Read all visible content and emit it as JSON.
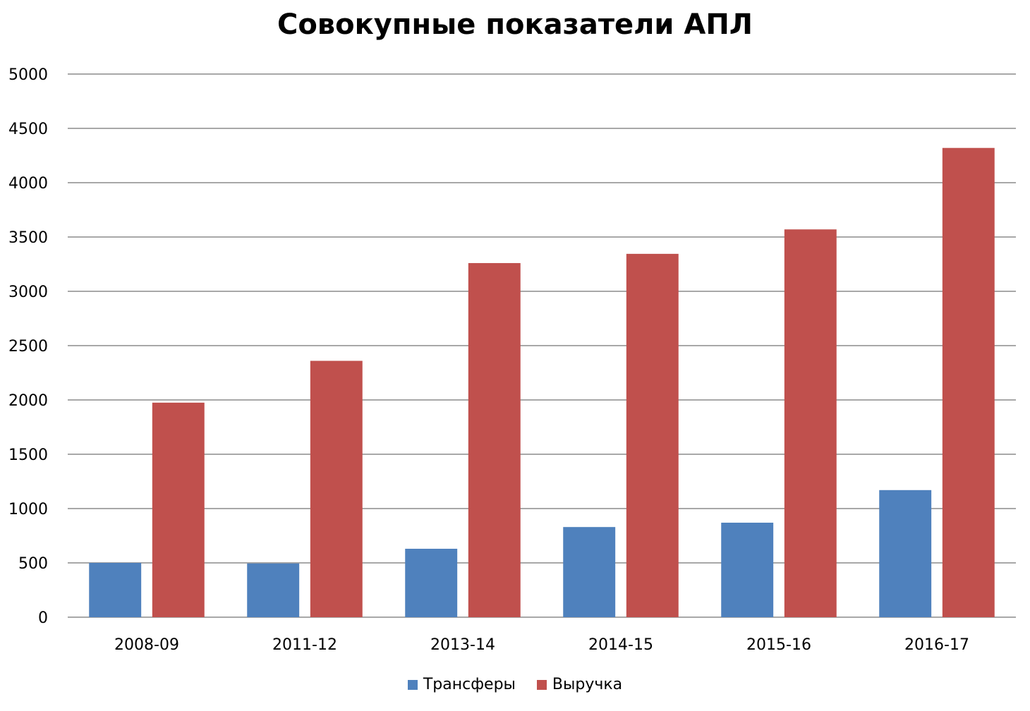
{
  "chart_data": {
    "type": "bar",
    "title": "Совокупные показатели АПЛ",
    "categories": [
      "2008-09",
      "2011-12",
      "2013-14",
      "2014-15",
      "2015-16",
      "2016-17"
    ],
    "series": [
      {
        "name": "Трансферы",
        "color": "#4f81bd",
        "values": [
          500,
          495,
          630,
          830,
          870,
          1170
        ]
      },
      {
        "name": "Выручка",
        "color": "#c0504d",
        "values": [
          1975,
          2360,
          3260,
          3345,
          3570,
          4320
        ]
      }
    ],
    "ylim": [
      0,
      5000
    ],
    "yticks": [
      0,
      500,
      1000,
      1500,
      2000,
      2500,
      3000,
      3500,
      4000,
      4500,
      5000
    ],
    "grid": true,
    "legend_position": "bottom"
  }
}
